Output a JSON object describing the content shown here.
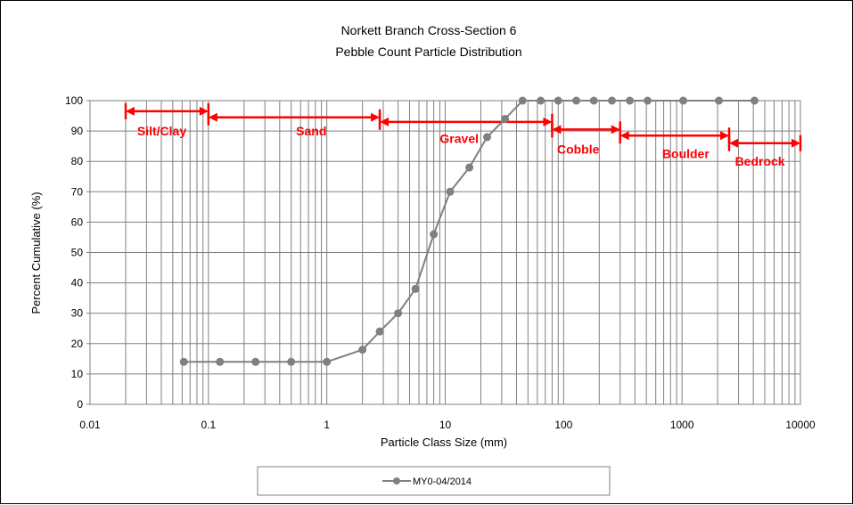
{
  "chart_data": {
    "type": "line",
    "title": [
      "Norkett Branch Cross-Section 6",
      "Pebble Count Particle Distribution"
    ],
    "xlabel": "Particle Class Size (mm)",
    "ylabel": "Percent Cumulative (%)",
    "x_scale": "log",
    "xlim": [
      0.01,
      10000
    ],
    "ylim": [
      0,
      100
    ],
    "x_ticks": [
      "0.01",
      "0.1",
      "1",
      "10",
      "100",
      "1000",
      "10000"
    ],
    "y_ticks": [
      "0",
      "10",
      "20",
      "30",
      "40",
      "50",
      "60",
      "70",
      "80",
      "90",
      "100"
    ],
    "grid": {
      "x_minor": true,
      "y_major": true
    },
    "legend_position": "bottom",
    "series": [
      {
        "name": "MY0-04/2014",
        "color": "#808080",
        "x": [
          0.062,
          0.125,
          0.25,
          0.5,
          1,
          2,
          2.8,
          4,
          5.6,
          8,
          11,
          16,
          22.6,
          32,
          45,
          64,
          90,
          128,
          180,
          256,
          362,
          512,
          1024,
          2048,
          4096
        ],
        "y": [
          14,
          14,
          14,
          14,
          14,
          18,
          24,
          30,
          38,
          56,
          70,
          78,
          88,
          94,
          100,
          100,
          100,
          100,
          100,
          100,
          100,
          100,
          100,
          100,
          100
        ]
      }
    ],
    "annotations": {
      "color": "#ff0000",
      "regions": [
        {
          "label": "Silt/Clay",
          "x_from": 0.02,
          "x_to": 0.1,
          "y_arrow": 96.5,
          "y_label": 90,
          "x_label": 0.025
        },
        {
          "label": "Sand",
          "x_from": 0.1,
          "x_to": 2.8,
          "y_arrow": 94.5,
          "y_label": 90,
          "x_label": 0.55
        },
        {
          "label": "Gravel",
          "x_from": 2.8,
          "x_to": 80,
          "y_arrow": 93,
          "y_label": 87.5,
          "x_label": 9
        },
        {
          "label": "Cobble",
          "x_from": 80,
          "x_to": 300,
          "y_arrow": 90.5,
          "y_label": 84,
          "x_label": 88
        },
        {
          "label": "Boulder",
          "x_from": 300,
          "x_to": 2500,
          "y_arrow": 88.5,
          "y_label": 82.5,
          "x_label": 680
        },
        {
          "label": "Bedrock",
          "x_from": 2500,
          "x_to": 10000,
          "y_arrow": 86,
          "y_label": 80,
          "x_label": 2800
        }
      ]
    }
  }
}
